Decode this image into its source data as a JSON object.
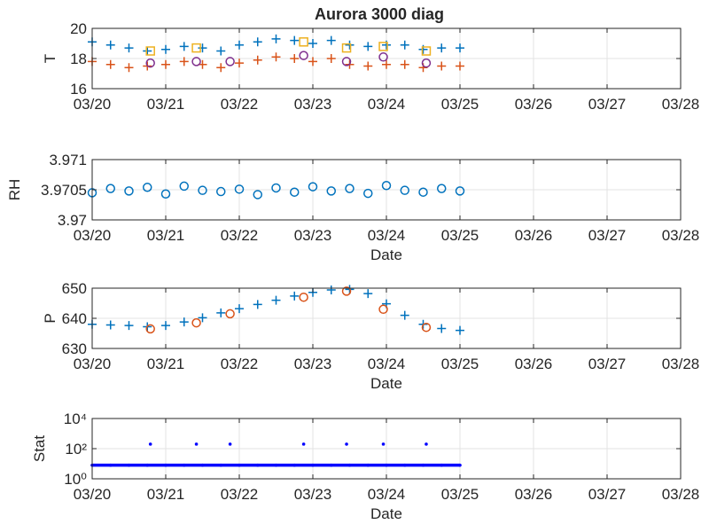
{
  "chart_data": [
    {
      "type": "scatter",
      "title": "Aurora 3000 diag",
      "ylabel": "T",
      "xlabel": "",
      "x_ticks": [
        "03/20",
        "03/21",
        "03/22",
        "03/23",
        "03/24",
        "03/25",
        "03/26",
        "03/27",
        "03/28"
      ],
      "xlim": [
        "03/20",
        "03/28"
      ],
      "ylim": [
        16,
        20
      ],
      "y_ticks": [
        "16",
        "18",
        "20"
      ],
      "grid": true,
      "series": [
        {
          "marker": "plus",
          "color": "#0072BD",
          "x": [
            "03/20 00:00",
            "03/20 06:00",
            "03/20 12:00",
            "03/20 18:00",
            "03/21 00:00",
            "03/21 06:00",
            "03/21 12:00",
            "03/21 18:00",
            "03/22 00:00",
            "03/22 06:00",
            "03/22 12:00",
            "03/22 18:00",
            "03/23 00:00",
            "03/23 06:00",
            "03/23 12:00",
            "03/23 18:00",
            "03/24 00:00",
            "03/24 06:00",
            "03/24 12:00",
            "03/24 18:00",
            "03/25 00:00"
          ],
          "y": [
            19.1,
            18.9,
            18.7,
            18.5,
            18.6,
            18.8,
            18.7,
            18.5,
            18.9,
            19.1,
            19.3,
            19.2,
            19.0,
            19.2,
            18.9,
            18.8,
            18.9,
            18.9,
            18.6,
            18.7,
            18.7
          ]
        },
        {
          "marker": "plus",
          "color": "#D95319",
          "x": [
            "03/20 00:00",
            "03/20 06:00",
            "03/20 12:00",
            "03/20 18:00",
            "03/21 00:00",
            "03/21 06:00",
            "03/21 12:00",
            "03/21 18:00",
            "03/22 00:00",
            "03/22 06:00",
            "03/22 12:00",
            "03/22 18:00",
            "03/23 00:00",
            "03/23 06:00",
            "03/23 12:00",
            "03/23 18:00",
            "03/24 00:00",
            "03/24 06:00",
            "03/24 12:00",
            "03/24 18:00",
            "03/25 00:00"
          ],
          "y": [
            17.8,
            17.6,
            17.4,
            17.5,
            17.6,
            17.8,
            17.6,
            17.4,
            17.7,
            17.9,
            18.1,
            18.0,
            17.8,
            18.0,
            17.6,
            17.5,
            17.6,
            17.6,
            17.4,
            17.5,
            17.5
          ]
        },
        {
          "marker": "square",
          "color": "#EDB120",
          "x": [
            "03/20 19:00",
            "03/21 10:00",
            "03/22 21:00",
            "03/23 11:00",
            "03/23 23:00",
            "03/24 13:00"
          ],
          "y": [
            18.5,
            18.7,
            19.1,
            18.7,
            18.8,
            18.5
          ]
        },
        {
          "marker": "circle",
          "color": "#7E2F8E",
          "x": [
            "03/20 19:00",
            "03/21 10:00",
            "03/21 21:00",
            "03/22 21:00",
            "03/23 11:00",
            "03/23 23:00",
            "03/24 13:00"
          ],
          "y": [
            17.7,
            17.8,
            17.8,
            18.2,
            17.8,
            18.1,
            17.7
          ]
        }
      ]
    },
    {
      "type": "scatter",
      "title": "",
      "ylabel": "RH",
      "xlabel": "Date",
      "x_ticks": [
        "03/20",
        "03/21",
        "03/22",
        "03/23",
        "03/24",
        "03/25",
        "03/26",
        "03/27",
        "03/28"
      ],
      "xlim": [
        "03/20",
        "03/28"
      ],
      "ylim": [
        3.97,
        3.971
      ],
      "y_ticks": [
        "3.97",
        "3.9705",
        "3.971"
      ],
      "grid": true,
      "series": [
        {
          "marker": "circle",
          "color": "#0072BD",
          "x": [
            "03/20 00:00",
            "03/20 06:00",
            "03/20 12:00",
            "03/20 18:00",
            "03/21 00:00",
            "03/21 06:00",
            "03/21 12:00",
            "03/21 18:00",
            "03/22 00:00",
            "03/22 06:00",
            "03/22 12:00",
            "03/22 18:00",
            "03/23 00:00",
            "03/23 06:00",
            "03/23 12:00",
            "03/23 18:00",
            "03/24 00:00",
            "03/24 06:00",
            "03/24 12:00",
            "03/24 18:00",
            "03/25 00:00"
          ],
          "y": [
            3.97045,
            3.97052,
            3.97048,
            3.97054,
            3.97043,
            3.97056,
            3.97049,
            3.97047,
            3.97051,
            3.97042,
            3.97053,
            3.97046,
            3.97055,
            3.97048,
            3.97052,
            3.97044,
            3.97057,
            3.97049,
            3.97046,
            3.97052,
            3.97048
          ]
        }
      ]
    },
    {
      "type": "scatter",
      "title": "",
      "ylabel": "P",
      "xlabel": "Date",
      "x_ticks": [
        "03/20",
        "03/21",
        "03/22",
        "03/23",
        "03/24",
        "03/25",
        "03/26",
        "03/27",
        "03/28"
      ],
      "xlim": [
        "03/20",
        "03/28"
      ],
      "ylim": [
        630,
        650
      ],
      "y_ticks": [
        "630",
        "640",
        "650"
      ],
      "grid": true,
      "series": [
        {
          "marker": "plus",
          "color": "#0072BD",
          "x": [
            "03/20 00:00",
            "03/20 06:00",
            "03/20 12:00",
            "03/20 18:00",
            "03/21 00:00",
            "03/21 06:00",
            "03/21 12:00",
            "03/21 18:00",
            "03/22 00:00",
            "03/22 06:00",
            "03/22 12:00",
            "03/22 18:00",
            "03/23 00:00",
            "03/23 06:00",
            "03/23 12:00",
            "03/23 18:00",
            "03/24 00:00",
            "03/24 06:00",
            "03/24 12:00",
            "03/24 18:00",
            "03/25 00:00"
          ],
          "y": [
            638.0,
            637.8,
            637.6,
            637.2,
            637.6,
            638.8,
            640.2,
            641.8,
            643.2,
            644.6,
            646.0,
            647.4,
            648.6,
            649.4,
            649.6,
            648.2,
            644.8,
            641.0,
            638.0,
            636.6,
            636.0
          ]
        },
        {
          "marker": "circle",
          "color": "#D95319",
          "x": [
            "03/20 19:00",
            "03/21 10:00",
            "03/21 21:00",
            "03/22 21:00",
            "03/23 11:00",
            "03/23 23:00",
            "03/24 13:00"
          ],
          "y": [
            636.5,
            638.5,
            641.5,
            647.0,
            649.0,
            643.0,
            637.0
          ]
        }
      ]
    },
    {
      "type": "scatter",
      "title": "",
      "ylabel": "Stat",
      "xlabel": "Date",
      "x_ticks": [
        "03/20",
        "03/21",
        "03/22",
        "03/23",
        "03/24",
        "03/25",
        "03/26",
        "03/27",
        "03/28"
      ],
      "xlim": [
        "03/20",
        "03/28"
      ],
      "yscale": "log",
      "ylim": [
        1,
        10000
      ],
      "y_ticks": [
        "10⁰",
        "10²",
        "10⁴"
      ],
      "grid": true,
      "series": [
        {
          "marker": "dot",
          "color": "#0000FF",
          "x": [
            "03/20 00:00",
            "03/20 06:00",
            "03/20 12:00",
            "03/20 18:00",
            "03/21 00:00",
            "03/21 06:00",
            "03/21 12:00",
            "03/21 18:00",
            "03/22 00:00",
            "03/22 06:00",
            "03/22 12:00",
            "03/22 18:00",
            "03/23 00:00",
            "03/23 06:00",
            "03/23 12:00",
            "03/23 18:00",
            "03/24 00:00",
            "03/24 06:00",
            "03/24 12:00",
            "03/24 18:00",
            "03/25 00:00"
          ],
          "y": [
            8,
            8,
            8,
            8,
            8,
            8,
            8,
            8,
            8,
            8,
            8,
            8,
            8,
            8,
            8,
            8,
            8,
            8,
            8,
            8,
            8
          ]
        },
        {
          "marker": "dot",
          "color": "#0000FF",
          "x": [
            "03/20 19:00",
            "03/21 10:00",
            "03/21 21:00",
            "03/22 21:00",
            "03/23 11:00",
            "03/23 23:00",
            "03/24 13:00"
          ],
          "y": [
            200,
            200,
            200,
            200,
            200,
            200,
            200
          ]
        }
      ]
    }
  ]
}
